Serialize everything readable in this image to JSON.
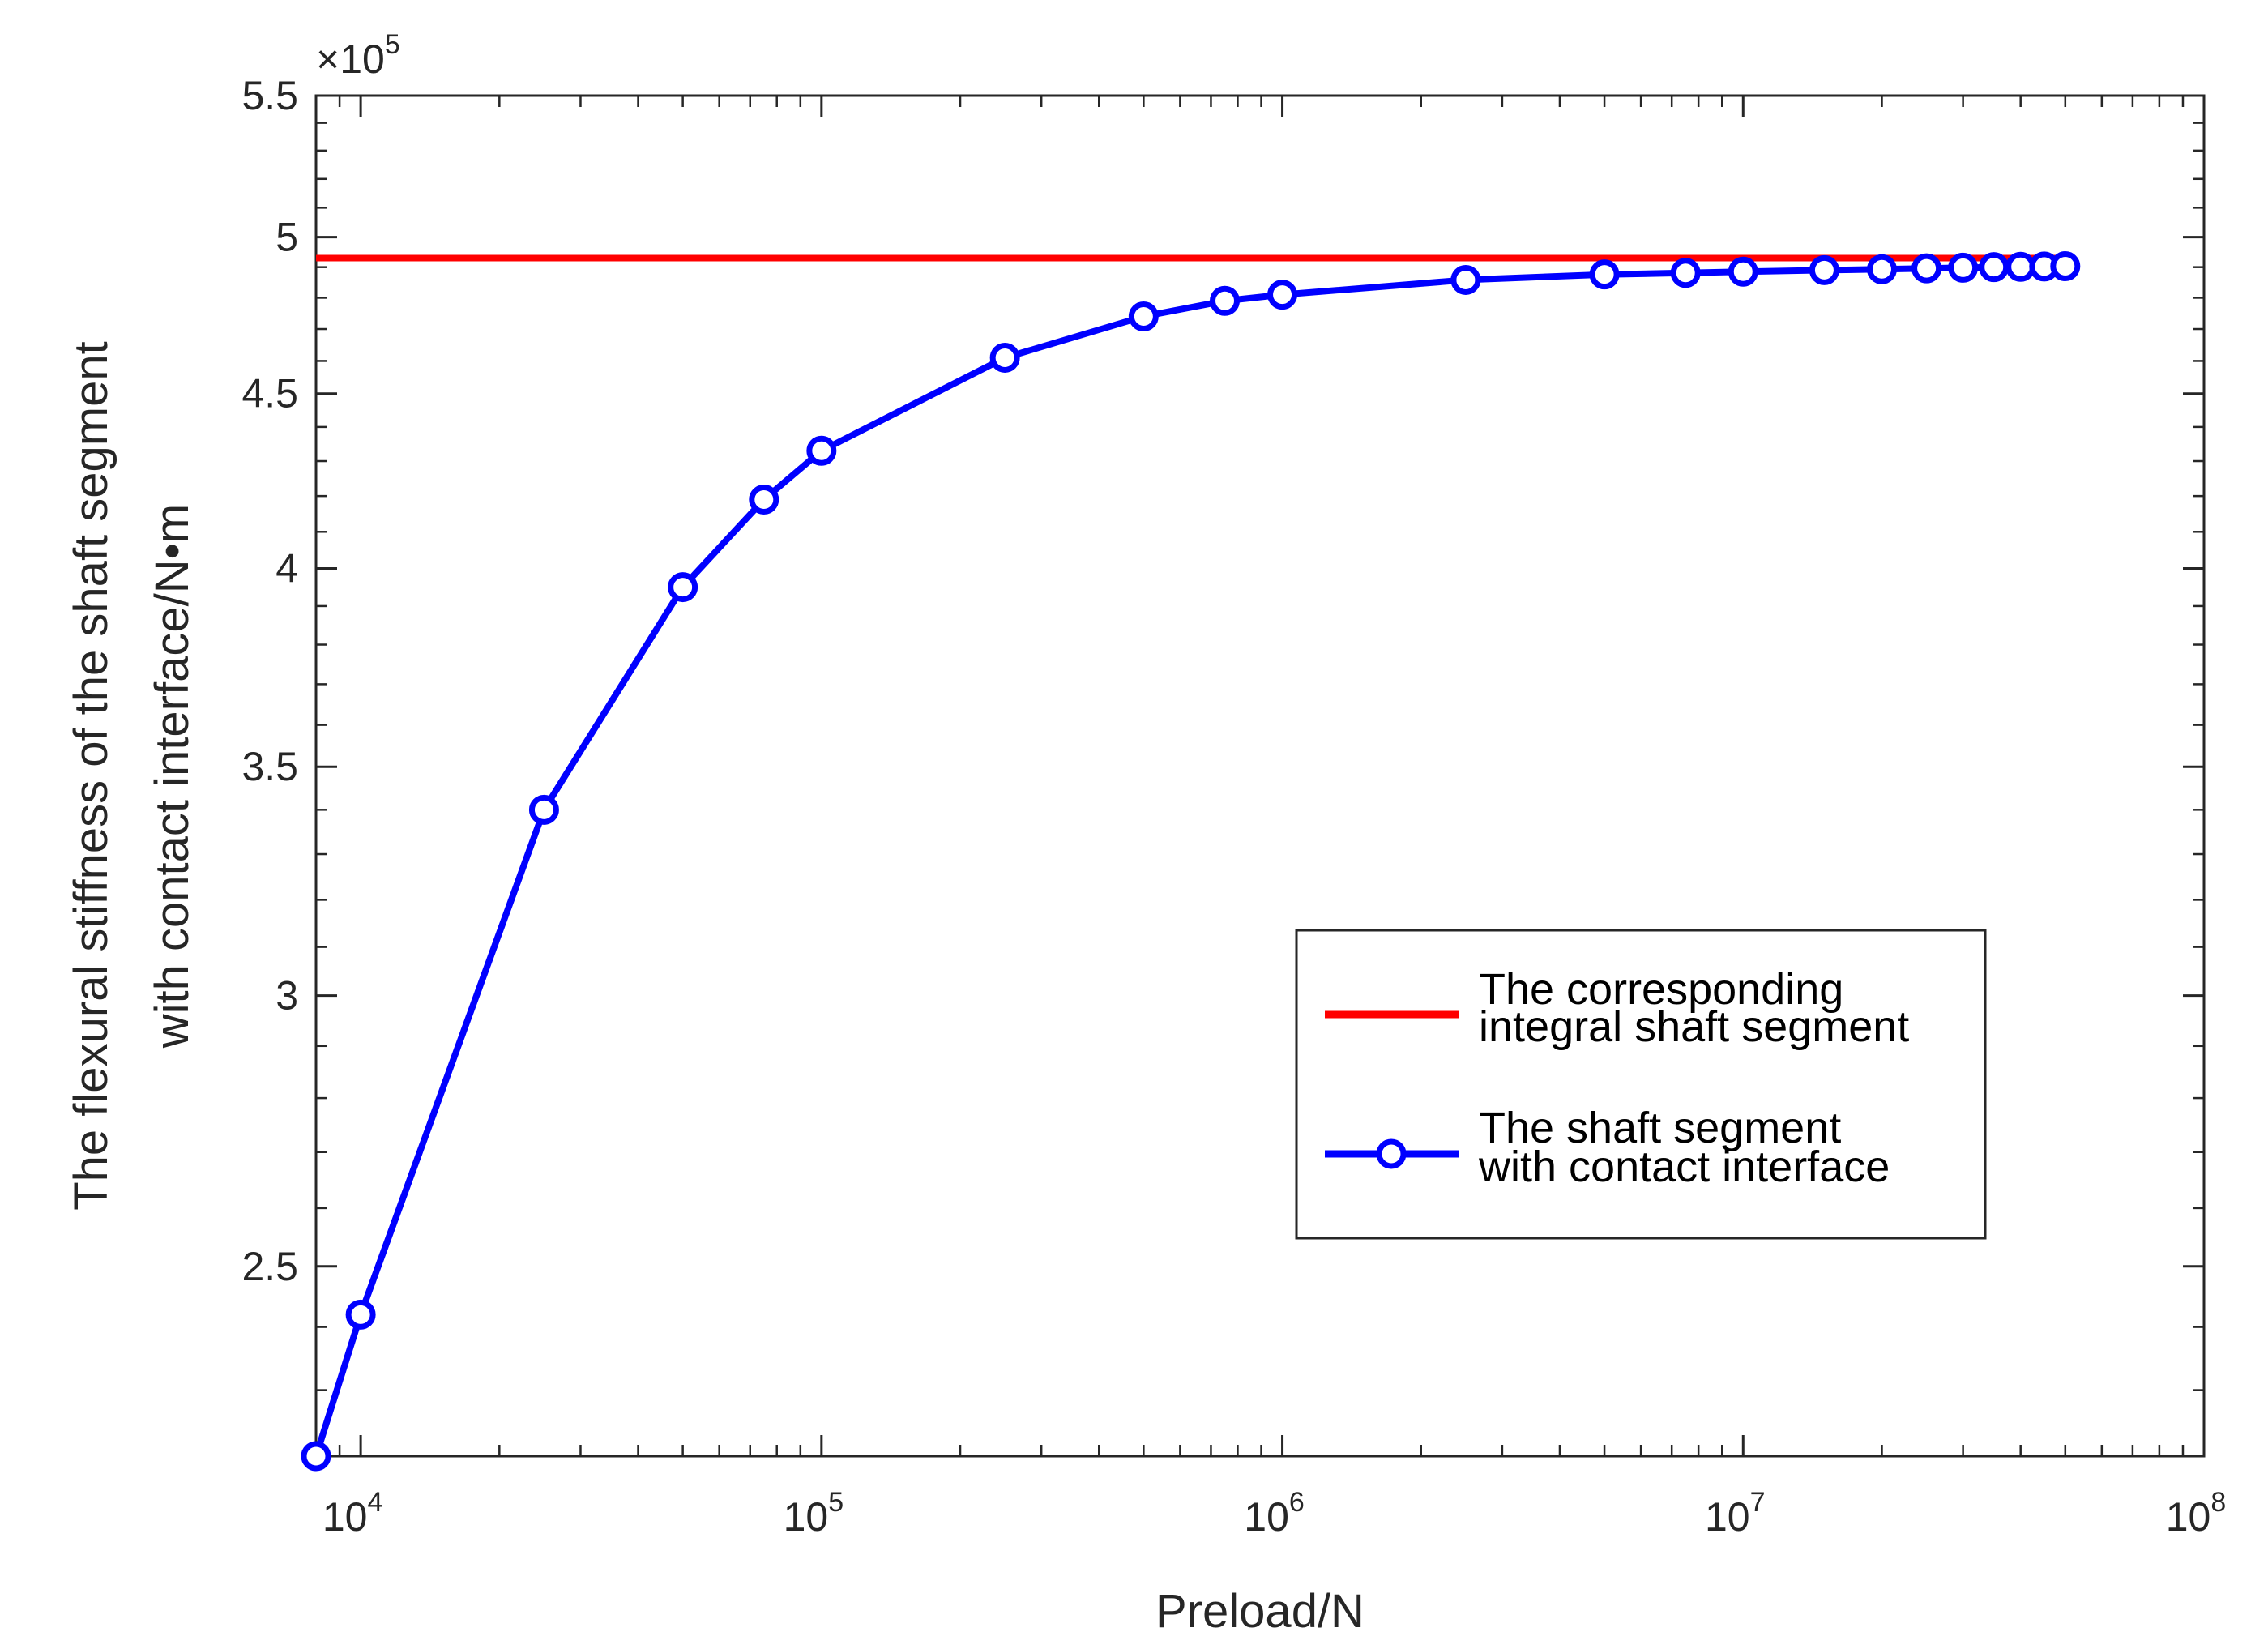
{
  "chart_data": {
    "type": "line",
    "xlabel": "Preload/N",
    "ylabel_lines": [
      "The flexural stiffness of the shaft segment",
      "with contact interface/N•m"
    ],
    "xscale": "log",
    "yscale": "log",
    "xlim": [
      8000,
      100000000
    ],
    "ylim": [
      220000,
      550000
    ],
    "y_multiplier": {
      "base": "×10",
      "exponent": "5"
    },
    "x_ticks": [
      {
        "value": 10000,
        "base": "10",
        "exp": "4"
      },
      {
        "value": 100000,
        "base": "10",
        "exp": "5"
      },
      {
        "value": 1000000,
        "base": "10",
        "exp": "6"
      },
      {
        "value": 10000000,
        "base": "10",
        "exp": "7"
      },
      {
        "value": 100000000,
        "base": "10",
        "exp": "8"
      }
    ],
    "y_ticks": [
      {
        "value": 250000,
        "label": "2.5"
      },
      {
        "value": 300000,
        "label": "3"
      },
      {
        "value": 350000,
        "label": "3.5"
      },
      {
        "value": 400000,
        "label": "4"
      },
      {
        "value": 450000,
        "label": "4.5"
      },
      {
        "value": 500000,
        "label": "5"
      },
      {
        "value": 550000,
        "label": "5.5"
      }
    ],
    "grid": false,
    "box": true,
    "legend_position": "lower-right",
    "series": [
      {
        "name": "The corresponding integral shaft segment",
        "name_lines": [
          "The corresponding",
          "integral shaft segment"
        ],
        "color": "#ff0000",
        "marker": "none",
        "x": [
          8000,
          50000000
        ],
        "y": [
          493000,
          493000
        ]
      },
      {
        "name": "The shaft segment with contact interface",
        "name_lines": [
          "The shaft segment",
          "with contact interface"
        ],
        "color": "#0000ff",
        "marker": "circle",
        "x": [
          8000,
          10000,
          25000,
          50000,
          75000,
          100000,
          250000,
          500000,
          750000,
          1000000,
          2500000,
          5000000,
          7500000,
          10000000,
          15000000,
          20000000,
          25000000,
          30000000,
          35000000,
          40000000,
          45000000,
          50000000
        ],
        "y": [
          220000,
          242000,
          340000,
          395000,
          419000,
          433000,
          461000,
          474000,
          479000,
          481000,
          485800,
          487600,
          488100,
          488500,
          489000,
          489300,
          489600,
          489800,
          490000,
          490100,
          490200,
          490300
        ]
      }
    ]
  }
}
